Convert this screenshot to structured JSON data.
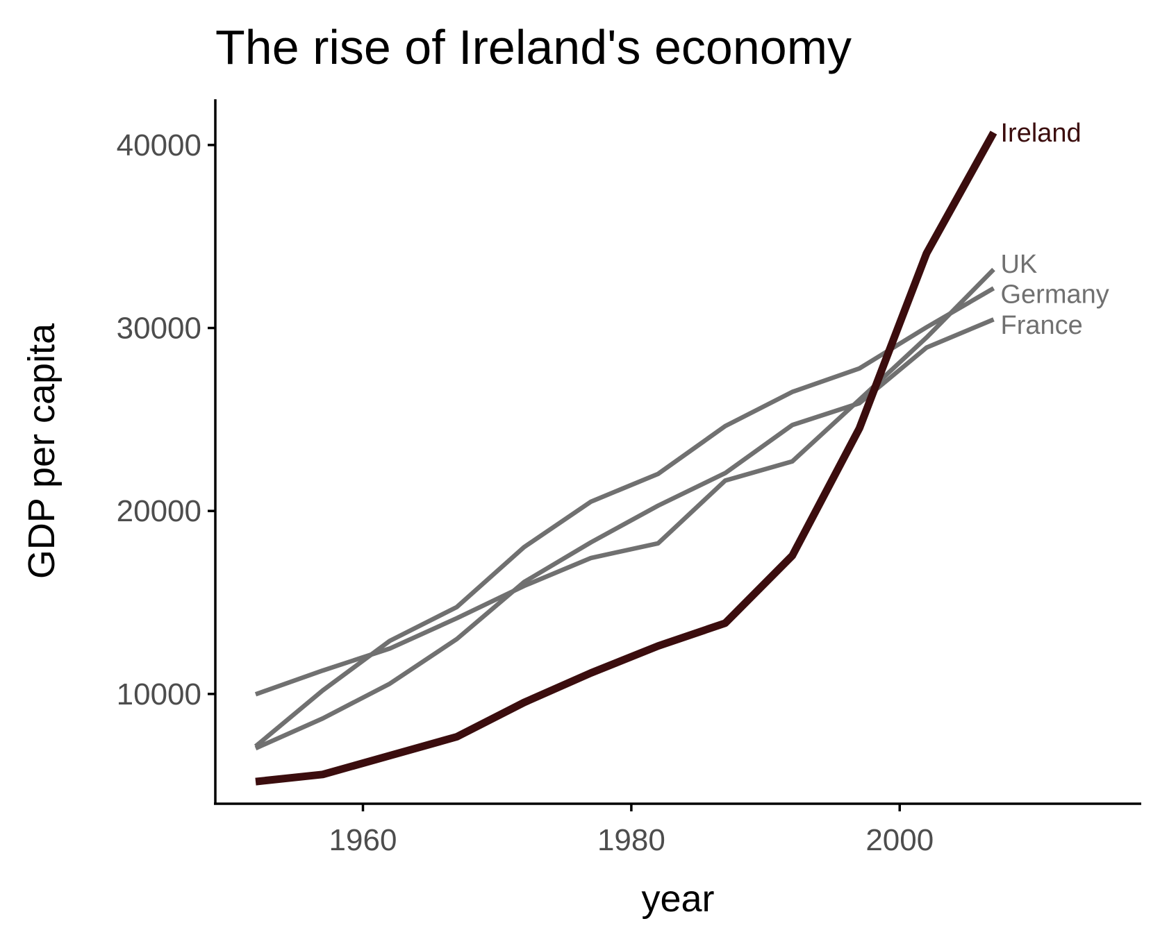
{
  "chart_data": {
    "type": "line",
    "title": "The rise of Ireland's economy",
    "xlabel": "year",
    "ylabel": "GDP per capita",
    "xlim": [
      1949,
      2018
    ],
    "ylim": [
      4000,
      42500
    ],
    "x_ticks": [
      1960,
      1980,
      2000
    ],
    "y_ticks": [
      10000,
      20000,
      30000,
      40000
    ],
    "grid": false,
    "legend": "direct labels at line ends",
    "x": [
      1952,
      1957,
      1962,
      1967,
      1972,
      1977,
      1982,
      1987,
      1992,
      1997,
      2002,
      2007
    ],
    "series": [
      {
        "name": "France",
        "color": "#707070",
        "highlight": false,
        "values": [
          7030,
          8660,
          10560,
          13000,
          16110,
          18290,
          20290,
          22070,
          24700,
          25890,
          28930,
          30470
        ]
      },
      {
        "name": "Germany",
        "color": "#707070",
        "highlight": false,
        "values": [
          7140,
          10190,
          12900,
          14750,
          18020,
          20510,
          22030,
          24640,
          26510,
          27790,
          30040,
          32170
        ]
      },
      {
        "name": "UK",
        "color": "#707070",
        "highlight": false,
        "values": [
          9980,
          11280,
          12480,
          14140,
          15900,
          17430,
          18230,
          21660,
          22710,
          26080,
          29480,
          33200
        ]
      },
      {
        "name": "Ireland",
        "color": "#3b0d0e",
        "highlight": true,
        "values": [
          5210,
          5600,
          6630,
          7660,
          9530,
          11150,
          12620,
          13870,
          17560,
          24520,
          34080,
          40680
        ]
      }
    ]
  }
}
